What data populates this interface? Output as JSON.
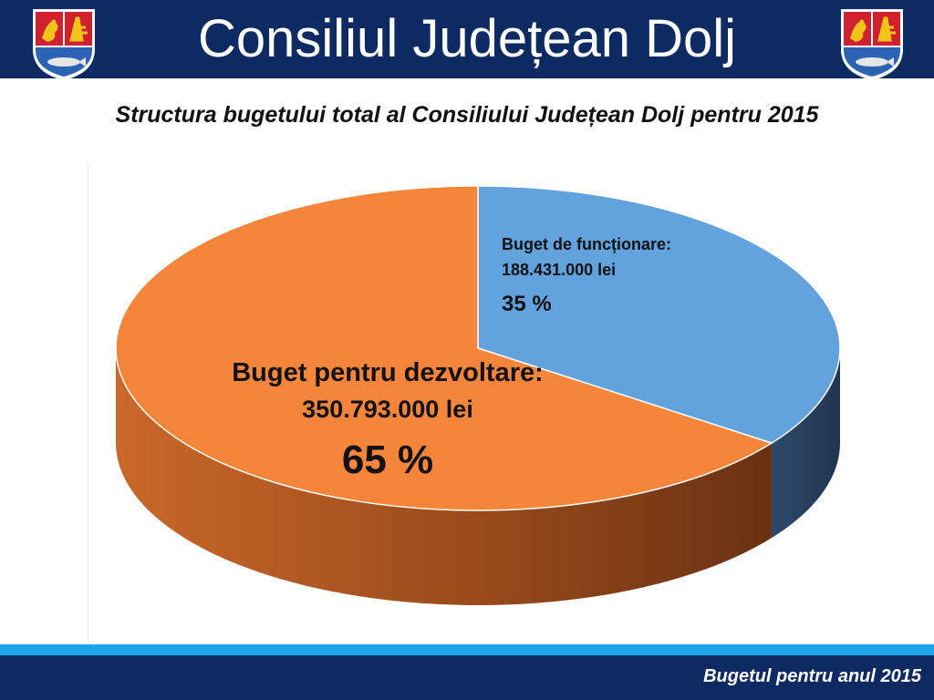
{
  "header": {
    "title": "Consiliul Județean Dolj",
    "crest_icon": "dolj-coat-of-arms-icon"
  },
  "subtitle": "Structura bugetului total al Consiliului Județean Dolj pentru 2015",
  "footer": {
    "text": "Bugetul pentru anul 2015"
  },
  "colors": {
    "header_bg": "#0d2a63",
    "band": "#1aa3e6",
    "dezvoltare": "#f5853a",
    "functionare": "#62a2dd"
  },
  "chart_data": {
    "type": "pie",
    "style": "3d",
    "slices": [
      {
        "label": "Buget de funcționare:",
        "amount_text": "188.431.000 lei",
        "value": 188431000,
        "percent_text": "35 %",
        "percent": 35,
        "color": "#62a2dd"
      },
      {
        "label": "Buget pentru dezvoltare:",
        "amount_text": "350.793.000 lei",
        "value": 350793000,
        "percent_text": "65 %",
        "percent": 65,
        "color": "#f5853a"
      }
    ]
  }
}
